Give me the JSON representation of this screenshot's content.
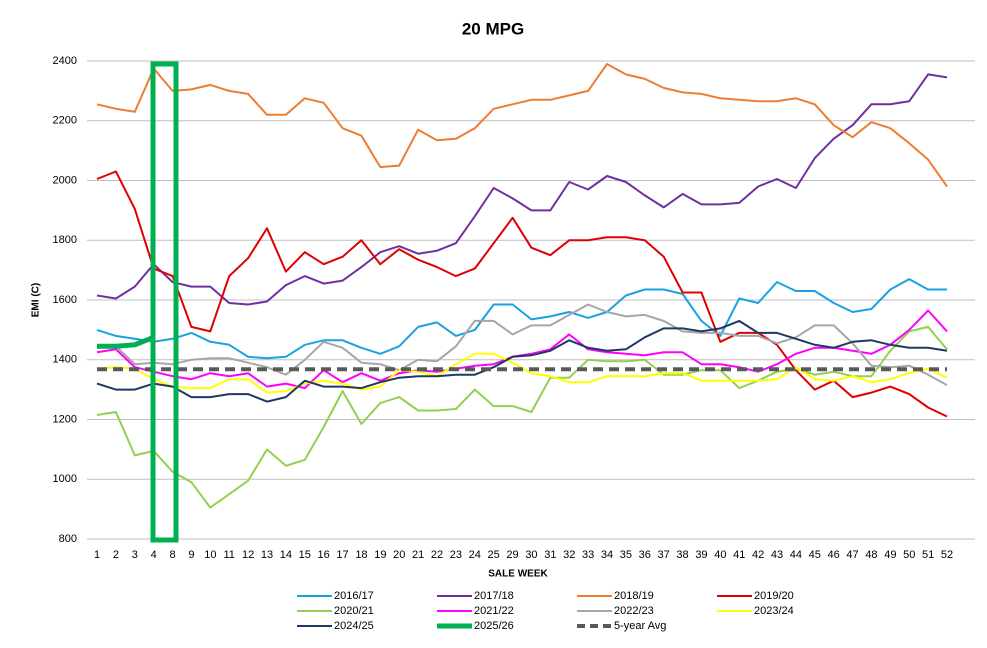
{
  "chart_data": {
    "type": "line",
    "title": "20 MPG",
    "x_label": "SALE WEEK",
    "y_label": "EMI (C)",
    "categories": [
      "1",
      "2",
      "3",
      "4",
      "8",
      "9",
      "10",
      "11",
      "12",
      "13",
      "14",
      "15",
      "16",
      "17",
      "18",
      "19",
      "20",
      "21",
      "22",
      "23",
      "24",
      "25",
      "29",
      "30",
      "31",
      "32",
      "33",
      "34",
      "35",
      "36",
      "37",
      "38",
      "39",
      "40",
      "41",
      "42",
      "43",
      "44",
      "45",
      "46",
      "47",
      "48",
      "49",
      "50",
      "51",
      "52"
    ],
    "ylim": [
      800,
      2400
    ],
    "yticks": [
      800,
      1000,
      1200,
      1400,
      1600,
      1800,
      2000,
      2200,
      2400
    ],
    "grid": true,
    "legend": "bottom",
    "series": [
      {
        "name": "2016/17",
        "color": "#1ba1e2",
        "values": [
          1500,
          1480,
          1470,
          1460,
          1470,
          1490,
          1460,
          1450,
          1410,
          1405,
          1410,
          1450,
          1465,
          1465,
          1440,
          1420,
          1445,
          1510,
          1525,
          1480,
          1500,
          1585,
          1585,
          1535,
          1545,
          1560,
          1540,
          1560,
          1615,
          1635,
          1635,
          1620,
          1530,
          1480,
          1605,
          1590,
          1660,
          1630,
          1630,
          1590,
          1560,
          1570,
          1635,
          1670,
          1635,
          1635
        ]
      },
      {
        "name": "2017/18",
        "color": "#7030a0",
        "values": [
          1615,
          1605,
          1645,
          1720,
          1660,
          1645,
          1645,
          1590,
          1585,
          1595,
          1650,
          1680,
          1655,
          1665,
          1710,
          1760,
          1780,
          1755,
          1765,
          1790,
          1880,
          1975,
          1940,
          1900,
          1900,
          1995,
          1970,
          2015,
          1995,
          1950,
          1910,
          1955,
          1920,
          1920,
          1925,
          1980,
          2005,
          1975,
          2075,
          2140,
          2185,
          2255,
          2255,
          2265,
          2355,
          2345
        ]
      },
      {
        "name": "2018/19",
        "color": "#ed7d31",
        "values": [
          2255,
          2240,
          2230,
          2375,
          2300,
          2305,
          2320,
          2300,
          2290,
          2220,
          2220,
          2275,
          2260,
          2175,
          2150,
          2045,
          2050,
          2170,
          2135,
          2140,
          2175,
          2240,
          2255,
          2270,
          2270,
          2285,
          2300,
          2390,
          2355,
          2340,
          2310,
          2295,
          2290,
          2275,
          2270,
          2265,
          2265,
          2275,
          2255,
          2185,
          2145,
          2195,
          2175,
          2125,
          2070,
          1980
        ]
      },
      {
        "name": "2019/20",
        "color": "#e00000",
        "values": [
          2005,
          2030,
          1905,
          1705,
          1680,
          1510,
          1495,
          1680,
          1740,
          1840,
          1695,
          1760,
          1720,
          1745,
          1800,
          1720,
          1770,
          1735,
          1710,
          1680,
          1705,
          1790,
          1875,
          1775,
          1750,
          1800,
          1800,
          1810,
          1810,
          1800,
          1745,
          1625,
          1625,
          1460,
          1490,
          1490,
          1450,
          1365,
          1300,
          1330,
          1275,
          1290,
          1310,
          1285,
          1240,
          1210
        ]
      },
      {
        "name": "2020/21",
        "color": "#92d050",
        "values": [
          1215,
          1225,
          1080,
          1095,
          1025,
          990,
          905,
          950,
          995,
          1100,
          1045,
          1065,
          1175,
          1295,
          1185,
          1255,
          1275,
          1230,
          1230,
          1235,
          1300,
          1245,
          1245,
          1225,
          1340,
          1340,
          1400,
          1395,
          1395,
          1400,
          1350,
          1350,
          1365,
          1365,
          1305,
          1330,
          1360,
          1370,
          1350,
          1360,
          1345,
          1345,
          1430,
          1495,
          1510,
          1435
        ]
      },
      {
        "name": "2021/22",
        "color": "#ff00ff",
        "values": [
          1425,
          1435,
          1375,
          1360,
          1345,
          1335,
          1355,
          1345,
          1355,
          1310,
          1320,
          1305,
          1365,
          1325,
          1355,
          1330,
          1355,
          1365,
          1360,
          1370,
          1380,
          1385,
          1410,
          1420,
          1435,
          1485,
          1435,
          1425,
          1420,
          1415,
          1425,
          1425,
          1385,
          1385,
          1375,
          1360,
          1385,
          1420,
          1440,
          1440,
          1430,
          1420,
          1450,
          1500,
          1565,
          1495
        ]
      },
      {
        "name": "2022/23",
        "color": "#a6a6a6",
        "values": [
          1440,
          1445,
          1385,
          1390,
          1385,
          1400,
          1405,
          1405,
          1390,
          1375,
          1350,
          1400,
          1460,
          1440,
          1390,
          1385,
          1365,
          1400,
          1395,
          1445,
          1530,
          1530,
          1485,
          1515,
          1515,
          1550,
          1585,
          1560,
          1545,
          1550,
          1530,
          1495,
          1490,
          1490,
          1480,
          1480,
          1455,
          1475,
          1515,
          1515,
          1455,
          1380,
          1375,
          1380,
          1350,
          1315
        ]
      },
      {
        "name": "2023/24",
        "color": "#ffff00",
        "values": [
          1370,
          1375,
          1370,
          1335,
          1310,
          1305,
          1305,
          1335,
          1335,
          1290,
          1295,
          1320,
          1330,
          1320,
          1300,
          1310,
          1365,
          1360,
          1345,
          1385,
          1420,
          1420,
          1390,
          1355,
          1345,
          1325,
          1325,
          1345,
          1345,
          1345,
          1355,
          1355,
          1330,
          1330,
          1330,
          1330,
          1335,
          1375,
          1335,
          1330,
          1345,
          1325,
          1335,
          1355,
          1370,
          1340
        ]
      },
      {
        "name": "2024/25",
        "color": "#1f3864",
        "values": [
          1320,
          1300,
          1300,
          1320,
          1310,
          1275,
          1275,
          1285,
          1285,
          1260,
          1275,
          1330,
          1310,
          1310,
          1305,
          1325,
          1340,
          1345,
          1345,
          1350,
          1350,
          1375,
          1410,
          1415,
          1430,
          1465,
          1440,
          1430,
          1435,
          1475,
          1505,
          1505,
          1495,
          1505,
          1530,
          1490,
          1490,
          1470,
          1450,
          1440,
          1460,
          1465,
          1450,
          1440,
          1440,
          1430
        ]
      },
      {
        "name": "2025/26",
        "color": "#00b050",
        "width": 5,
        "values": [
          1445,
          1445,
          1450,
          1475,
          null,
          null,
          null,
          null,
          null,
          null,
          null,
          null,
          null,
          null,
          null,
          null,
          null,
          null,
          null,
          null,
          null,
          null,
          null,
          null,
          null,
          null,
          null,
          null,
          null,
          null,
          null,
          null,
          null,
          null,
          null,
          null,
          null,
          null,
          null,
          null,
          null,
          null,
          null,
          null,
          null,
          null
        ]
      },
      {
        "name": "5-year Avg",
        "color": "#595959",
        "width": 4,
        "dash": true,
        "values": [
          1368,
          1368,
          1368,
          1368,
          1368,
          1368,
          1368,
          1368,
          1368,
          1368,
          1368,
          1368,
          1368,
          1368,
          1368,
          1368,
          1368,
          1368,
          1368,
          1368,
          1368,
          1368,
          1368,
          1368,
          1368,
          1368,
          1368,
          1368,
          1368,
          1368,
          1368,
          1368,
          1368,
          1368,
          1368,
          1368,
          1368,
          1368,
          1368,
          1368,
          1368,
          1368,
          1368,
          1368,
          1368,
          1368
        ]
      }
    ]
  }
}
